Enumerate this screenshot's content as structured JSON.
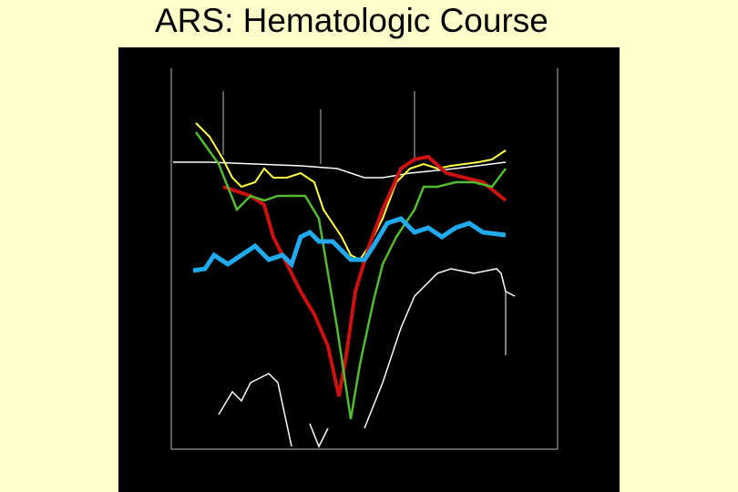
{
  "slide": {
    "title": "ARS: Hematologic Course"
  }
}
